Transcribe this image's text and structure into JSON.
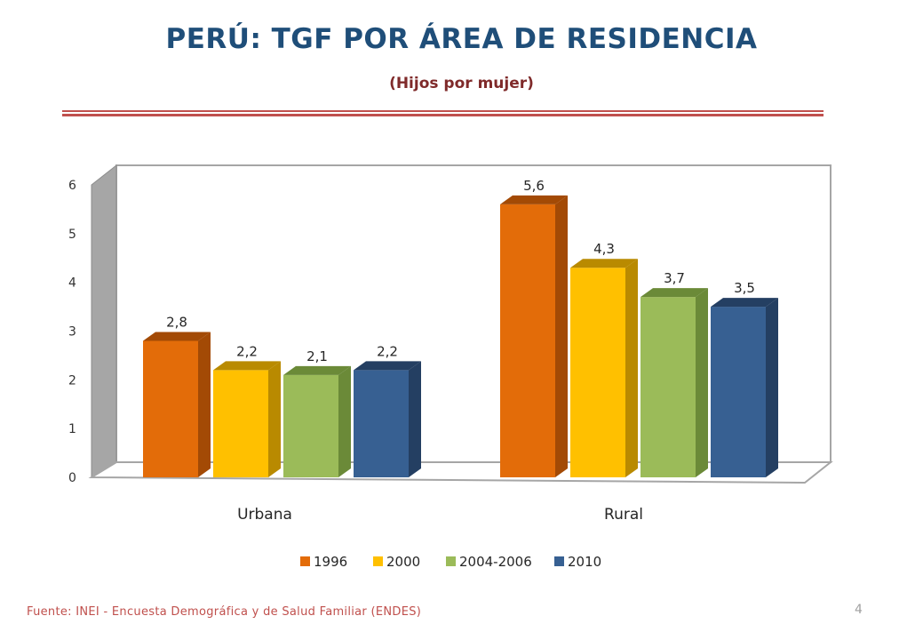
{
  "slide": {
    "title": "PERÚ: TGF POR ÁREA DE RESIDENCIA",
    "subtitle": "(Hijos por mujer)",
    "footer": "Fuente: INEI - Encuesta Demográfica y de Salud Familiar (ENDES)",
    "page_number": "4"
  },
  "chart_data": {
    "type": "bar",
    "categories": [
      "Urbana",
      "Rural"
    ],
    "series": [
      {
        "name": "1996",
        "values": [
          2.8,
          5.6
        ],
        "labels": [
          "2,8",
          "5,6"
        ],
        "color": "#E36C09",
        "side_color": "#A34A05"
      },
      {
        "name": "2000",
        "values": [
          2.2,
          4.3
        ],
        "labels": [
          "2,2",
          "4,3"
        ],
        "color": "#FFC000",
        "side_color": "#B98A00"
      },
      {
        "name": "2004-2006",
        "values": [
          2.1,
          3.7
        ],
        "labels": [
          "2,1",
          "3,7"
        ],
        "color": "#9BBB59",
        "side_color": "#6B8A38"
      },
      {
        "name": "2010",
        "values": [
          2.2,
          3.5
        ],
        "labels": [
          "2,2",
          "3,5"
        ],
        "color": "#376092",
        "side_color": "#243F62"
      }
    ],
    "yticks": [
      "0",
      "1",
      "2",
      "3",
      "4",
      "5",
      "6"
    ],
    "ylim": [
      0,
      6
    ],
    "legend_position": "bottom",
    "three_d": true,
    "grid": false
  }
}
